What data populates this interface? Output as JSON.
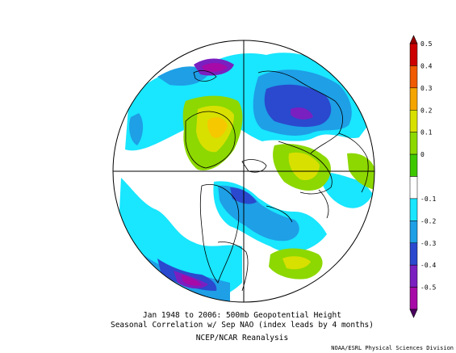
{
  "caption": {
    "line1": "Jan 1948 to 2006: 500mb Geopotential Height",
    "line2": "Seasonal Correlation w/ Sep NAO (index leads by 4 months)",
    "line3": "NCEP/NCAR Reanalysis"
  },
  "credit": "NOAA/ESRL Physical Sciences Division",
  "colorbar": {
    "levels": [
      {
        "label": "0.5",
        "color": "#cc0000"
      },
      {
        "label": "0.4",
        "color": "#f05a00"
      },
      {
        "label": "0.3",
        "color": "#f5a500"
      },
      {
        "label": "0.2",
        "color": "#d8e000"
      },
      {
        "label": "0.1",
        "color": "#8cd800"
      },
      {
        "label": "0",
        "color": "#3ec800"
      },
      {
        "label": "",
        "color": "#ffffff"
      },
      {
        "label": "-0.1",
        "color": "#19e6ff"
      },
      {
        "label": "-0.2",
        "color": "#1e9fe6"
      },
      {
        "label": "-0.3",
        "color": "#2a49ce"
      },
      {
        "label": "-0.4",
        "color": "#7a1fc0"
      },
      {
        "label": "-0.5",
        "color": "#a70aa7"
      }
    ],
    "end_low_color": "#4b0060",
    "end_high_color": "#990000"
  }
}
